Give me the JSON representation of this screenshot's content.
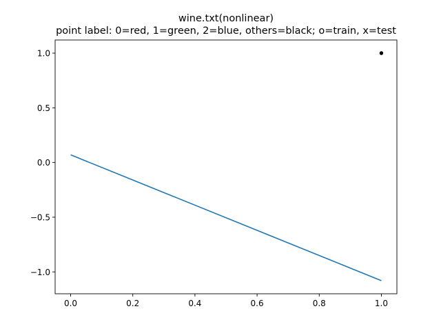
{
  "chart_data": {
    "type": "line",
    "title": "wine.txt(nonlinear)",
    "subtitle": "point label: 0=red, 1=green, 2=blue, others=black; o=train, x=test",
    "xlabel": "",
    "ylabel": "",
    "xlim": [
      -0.05,
      1.05
    ],
    "ylim": [
      -1.2,
      1.12
    ],
    "grid": false,
    "x_ticks": [
      0.0,
      0.2,
      0.4,
      0.6,
      0.8,
      1.0
    ],
    "x_tick_labels": [
      "0.0",
      "0.2",
      "0.4",
      "0.6",
      "0.8",
      "1.0"
    ],
    "y_ticks": [
      1.0,
      0.5,
      0.0,
      -0.5,
      -1.0
    ],
    "y_tick_labels": [
      "1.0",
      "0.5",
      "0.0",
      "−0.5",
      "−1.0"
    ],
    "series": [
      {
        "kind": "line",
        "color": "#1f77b4",
        "x": [
          0.0,
          1.0
        ],
        "y": [
          0.07,
          -1.08
        ]
      },
      {
        "kind": "scatter",
        "marker": "o",
        "color": "#ff0000",
        "x": [
          1.0,
          1.0,
          1.0
        ],
        "y": [
          1.0,
          1.0,
          1.0
        ]
      },
      {
        "kind": "scatter",
        "marker": "o",
        "color": "#000000",
        "x": [
          1.0,
          1.0,
          1.0
        ],
        "y": [
          1.0,
          1.0,
          1.0
        ]
      }
    ]
  }
}
